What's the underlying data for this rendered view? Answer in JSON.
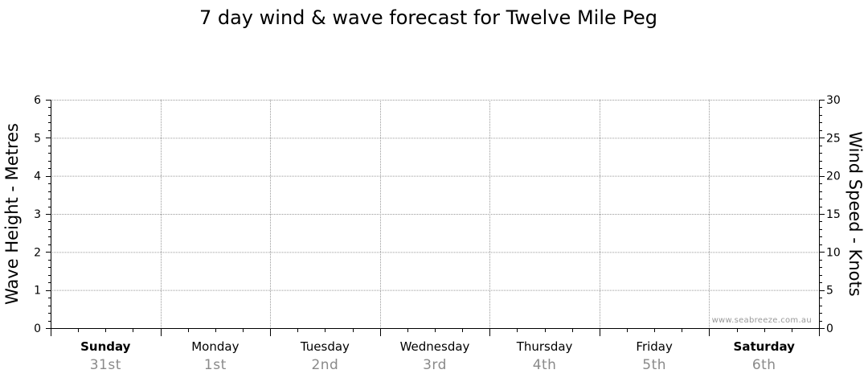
{
  "chart_data": {
    "type": "line",
    "title": "7 day wind & wave forecast for Twelve Mile Peg",
    "ylabel_left": "Wave Height - Metres",
    "ylabel_right": "Wind Speed - Knots",
    "ylim_left": [
      0,
      6
    ],
    "ylim_right": [
      0,
      30
    ],
    "yticks_left": [
      "0",
      "1",
      "2",
      "3",
      "4",
      "5",
      "6"
    ],
    "yticks_right": [
      "0",
      "5",
      "10",
      "15",
      "20",
      "25",
      "30"
    ],
    "days": [
      {
        "day": "Sunday",
        "date": "31st",
        "bold": true
      },
      {
        "day": "Monday",
        "date": "1st",
        "bold": false
      },
      {
        "day": "Tuesday",
        "date": "2nd",
        "bold": false
      },
      {
        "day": "Wednesday",
        "date": "3rd",
        "bold": false
      },
      {
        "day": "Thursday",
        "date": "4th",
        "bold": false
      },
      {
        "day": "Friday",
        "date": "5th",
        "bold": false
      },
      {
        "day": "Saturday",
        "date": "6th",
        "bold": true
      }
    ],
    "grid": true,
    "series": [],
    "watermark": "www.seabreeze.com.au"
  }
}
